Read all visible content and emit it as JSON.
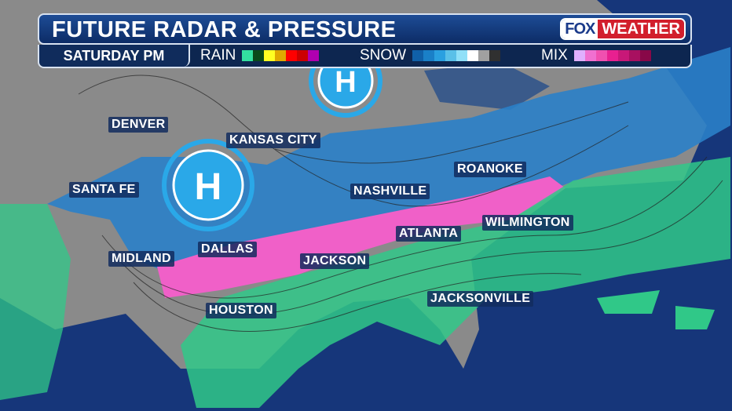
{
  "header": {
    "title": "FUTURE RADAR & PRESSURE",
    "logo": {
      "fox": "FOX",
      "weather": "WEATHER"
    },
    "time": "SATURDAY PM"
  },
  "legend": [
    {
      "label": "RAIN",
      "colors": [
        "#33e0a0",
        "#0a4a1a",
        "#ffff22",
        "#e0a800",
        "#ff0000",
        "#cc0000",
        "#b000b0"
      ]
    },
    {
      "label": "SNOW",
      "colors": [
        "#1060a8",
        "#1a80c8",
        "#2aa0e0",
        "#5ac0e8",
        "#90e0f8",
        "#ffffff",
        "#a0a0a0",
        "#303030"
      ]
    },
    {
      "label": "MIX",
      "colors": [
        "#e0b0ff",
        "#f070d0",
        "#f050b0",
        "#e82090",
        "#c81878",
        "#a81060",
        "#880848"
      ]
    }
  ],
  "pressure_centers": [
    {
      "type": "H",
      "label": "H"
    },
    {
      "type": "H",
      "label": "H"
    }
  ],
  "cities": [
    "DENVER",
    "KANSAS CITY",
    "SANTA FE",
    "ROANOKE",
    "NASHVILLE",
    "MIDLAND",
    "DALLAS",
    "ATLANTA",
    "WILMINGTON",
    "JACKSON",
    "JACKSONVILLE",
    "HOUSTON"
  ]
}
